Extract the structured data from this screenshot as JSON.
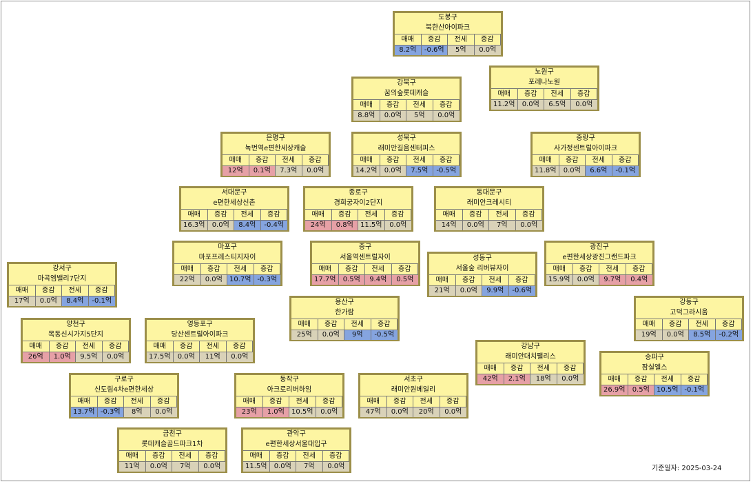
{
  "headers": {
    "sale": "매매",
    "sale_change": "증감",
    "jeonse": "전세",
    "jeonse_change": "증감"
  },
  "base_date_label": "기준일자:",
  "base_date": "2025-03-24",
  "colors": {
    "card_fill": "#fdf5a2",
    "card_border": "#9c8f4a",
    "increase": "#e6a0a6",
    "decrease": "#85a4df",
    "neutral": "#d9d2b8"
  },
  "districts": [
    {
      "district": "도봉구",
      "apartment": "북한산아이파크",
      "sale": "8.2억",
      "sale_change": "-0.6억",
      "jeonse": "5억",
      "jeonse_change": "0.0억",
      "sale_state": "down",
      "sale_change_state": "down",
      "jeonse_state": "flat",
      "jeonse_change_state": "flat"
    },
    {
      "district": "노원구",
      "apartment": "포레나노원",
      "sale": "11.2억",
      "sale_change": "0.0억",
      "jeonse": "6.5억",
      "jeonse_change": "0.0억",
      "sale_state": "flat",
      "sale_change_state": "flat",
      "jeonse_state": "flat",
      "jeonse_change_state": "flat"
    },
    {
      "district": "강북구",
      "apartment": "꿈의숲롯데캐슬",
      "sale": "8.8억",
      "sale_change": "0.0억",
      "jeonse": "5억",
      "jeonse_change": "0.0억",
      "sale_state": "flat",
      "sale_change_state": "flat",
      "jeonse_state": "flat",
      "jeonse_change_state": "flat"
    },
    {
      "district": "은평구",
      "apartment": "녹번역e편한세상캐슬",
      "sale": "12억",
      "sale_change": "0.1억",
      "jeonse": "7.3억",
      "jeonse_change": "0.0억",
      "sale_state": "up",
      "sale_change_state": "up",
      "jeonse_state": "flat",
      "jeonse_change_state": "flat"
    },
    {
      "district": "성북구",
      "apartment": "래미안길음센터피스",
      "sale": "14.2억",
      "sale_change": "0.0억",
      "jeonse": "7.5억",
      "jeonse_change": "-0.5억",
      "sale_state": "flat",
      "sale_change_state": "flat",
      "jeonse_state": "down",
      "jeonse_change_state": "down"
    },
    {
      "district": "중랑구",
      "apartment": "사가정센트럴아이파크",
      "sale": "11.8억",
      "sale_change": "0.0억",
      "jeonse": "6.6억",
      "jeonse_change": "-0.1억",
      "sale_state": "flat",
      "sale_change_state": "flat",
      "jeonse_state": "down",
      "jeonse_change_state": "down"
    },
    {
      "district": "서대문구",
      "apartment": "e편한세상신촌",
      "sale": "16.3억",
      "sale_change": "0.0억",
      "jeonse": "8.4억",
      "jeonse_change": "-0.4억",
      "sale_state": "flat",
      "sale_change_state": "flat",
      "jeonse_state": "down",
      "jeonse_change_state": "down"
    },
    {
      "district": "종로구",
      "apartment": "경희궁자이2단지",
      "sale": "24억",
      "sale_change": "0.8억",
      "jeonse": "11.5억",
      "jeonse_change": "0.0억",
      "sale_state": "up",
      "sale_change_state": "up",
      "jeonse_state": "flat",
      "jeonse_change_state": "flat"
    },
    {
      "district": "동대문구",
      "apartment": "래미안크레시티",
      "sale": "14억",
      "sale_change": "0.0억",
      "jeonse": "7억",
      "jeonse_change": "0.0억",
      "sale_state": "flat",
      "sale_change_state": "flat",
      "jeonse_state": "flat",
      "jeonse_change_state": "flat"
    },
    {
      "district": "마포구",
      "apartment": "마포프레스티지자이",
      "sale": "22억",
      "sale_change": "0.0억",
      "jeonse": "10.7억",
      "jeonse_change": "-0.3억",
      "sale_state": "flat",
      "sale_change_state": "flat",
      "jeonse_state": "down",
      "jeonse_change_state": "down"
    },
    {
      "district": "중구",
      "apartment": "서울역센트럴자이",
      "sale": "17.7억",
      "sale_change": "0.5억",
      "jeonse": "9.4억",
      "jeonse_change": "0.5억",
      "sale_state": "up",
      "sale_change_state": "up",
      "jeonse_state": "up",
      "jeonse_change_state": "up"
    },
    {
      "district": "광진구",
      "apartment": "e편한세상광진그랜드파크",
      "sale": "15.9억",
      "sale_change": "0.0억",
      "jeonse": "9.7억",
      "jeonse_change": "0.4억",
      "sale_state": "flat",
      "sale_change_state": "flat",
      "jeonse_state": "up",
      "jeonse_change_state": "up"
    },
    {
      "district": "성동구",
      "apartment": "서울숲 리버뷰자이",
      "sale": "21억",
      "sale_change": "0.0억",
      "jeonse": "9.9억",
      "jeonse_change": "-0.6억",
      "sale_state": "flat",
      "sale_change_state": "flat",
      "jeonse_state": "down",
      "jeonse_change_state": "down"
    },
    {
      "district": "강서구",
      "apartment": "마곡엠밸리7단지",
      "sale": "17억",
      "sale_change": "0.0억",
      "jeonse": "8.4억",
      "jeonse_change": "-0.1억",
      "sale_state": "flat",
      "sale_change_state": "flat",
      "jeonse_state": "down",
      "jeonse_change_state": "down"
    },
    {
      "district": "용산구",
      "apartment": "한가람",
      "sale": "25억",
      "sale_change": "0.0억",
      "jeonse": "9억",
      "jeonse_change": "-0.5억",
      "sale_state": "flat",
      "sale_change_state": "flat",
      "jeonse_state": "down",
      "jeonse_change_state": "down"
    },
    {
      "district": "강동구",
      "apartment": "고덕그라시움",
      "sale": "19억",
      "sale_change": "0.0억",
      "jeonse": "8.5억",
      "jeonse_change": "-0.2억",
      "sale_state": "flat",
      "sale_change_state": "flat",
      "jeonse_state": "down",
      "jeonse_change_state": "down"
    },
    {
      "district": "양천구",
      "apartment": "목동신시가지5단지",
      "sale": "26억",
      "sale_change": "1.0억",
      "jeonse": "9.5억",
      "jeonse_change": "0.0억",
      "sale_state": "up",
      "sale_change_state": "up",
      "jeonse_state": "flat",
      "jeonse_change_state": "flat"
    },
    {
      "district": "영등포구",
      "apartment": "당산센트럴아이파크",
      "sale": "17.5억",
      "sale_change": "0.0억",
      "jeonse": "11억",
      "jeonse_change": "0.0억",
      "sale_state": "flat",
      "sale_change_state": "flat",
      "jeonse_state": "flat",
      "jeonse_change_state": "flat"
    },
    {
      "district": "강남구",
      "apartment": "래미안대치팰리스",
      "sale": "42억",
      "sale_change": "2.1억",
      "jeonse": "18억",
      "jeonse_change": "0.0억",
      "sale_state": "up",
      "sale_change_state": "up",
      "jeonse_state": "flat",
      "jeonse_change_state": "flat"
    },
    {
      "district": "송파구",
      "apartment": "잠실엘스",
      "sale": "26.9억",
      "sale_change": "0.5억",
      "jeonse": "10.5억",
      "jeonse_change": "-0.1억",
      "sale_state": "up",
      "sale_change_state": "up",
      "jeonse_state": "down",
      "jeonse_change_state": "down"
    },
    {
      "district": "구로구",
      "apartment": "신도림4차e편한세상",
      "sale": "13.7억",
      "sale_change": "-0.3억",
      "jeonse": "8억",
      "jeonse_change": "0.0억",
      "sale_state": "down",
      "sale_change_state": "down",
      "jeonse_state": "flat",
      "jeonse_change_state": "flat"
    },
    {
      "district": "동작구",
      "apartment": "아크로리버하임",
      "sale": "23억",
      "sale_change": "1.0억",
      "jeonse": "10.5억",
      "jeonse_change": "0.0억",
      "sale_state": "up",
      "sale_change_state": "up",
      "jeonse_state": "flat",
      "jeonse_change_state": "flat"
    },
    {
      "district": "서초구",
      "apartment": "래미안원베일리",
      "sale": "47억",
      "sale_change": "0.0억",
      "jeonse": "20억",
      "jeonse_change": "0.0억",
      "sale_state": "flat",
      "sale_change_state": "flat",
      "jeonse_state": "flat",
      "jeonse_change_state": "flat"
    },
    {
      "district": "금천구",
      "apartment": "롯데캐슬골드파크1차",
      "sale": "11억",
      "sale_change": "0.0억",
      "jeonse": "7억",
      "jeonse_change": "0.0억",
      "sale_state": "flat",
      "sale_change_state": "flat",
      "jeonse_state": "flat",
      "jeonse_change_state": "flat"
    },
    {
      "district": "관악구",
      "apartment": "e편한세상서울대입구",
      "sale": "11.5억",
      "sale_change": "0.0억",
      "jeonse": "7억",
      "jeonse_change": "0.0억",
      "sale_state": "flat",
      "sale_change_state": "flat",
      "jeonse_state": "flat",
      "jeonse_change_state": "flat"
    }
  ]
}
